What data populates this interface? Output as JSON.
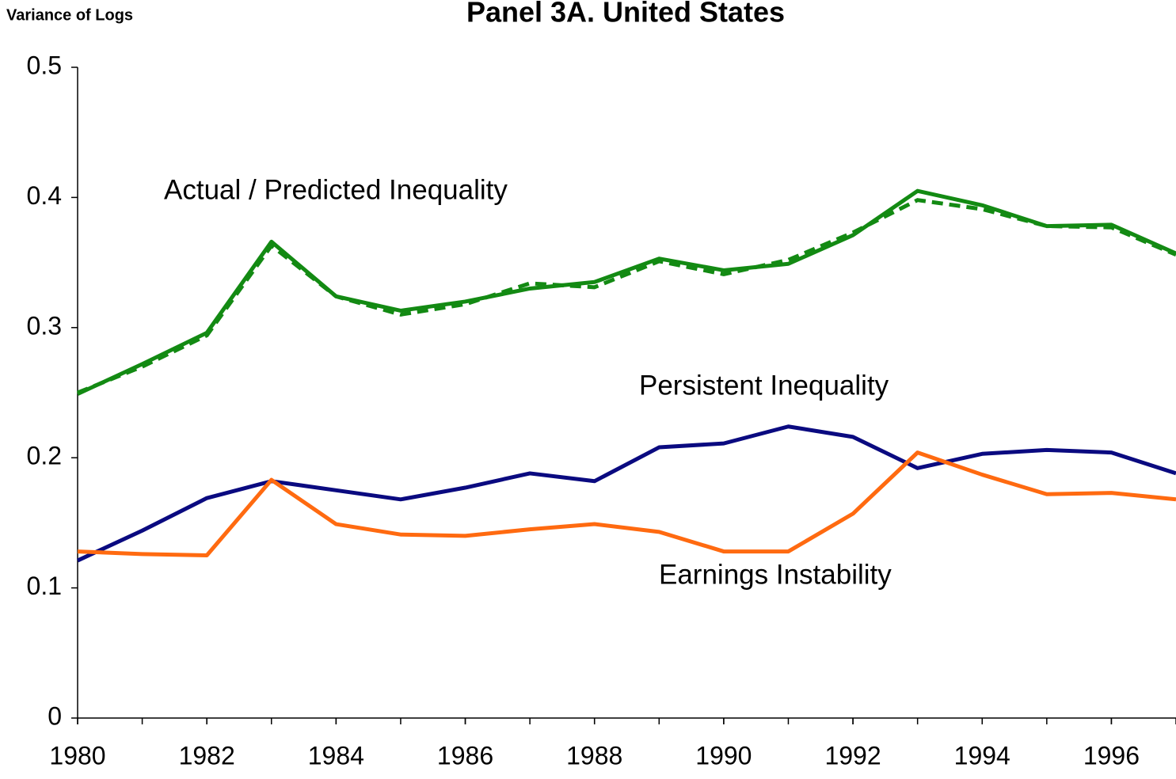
{
  "chart_data": {
    "type": "line",
    "title": "Panel 3A.  United States",
    "y_label": "Variance of Logs",
    "x": [
      1980,
      1981,
      1982,
      1983,
      1984,
      1985,
      1986,
      1987,
      1988,
      1989,
      1990,
      1991,
      1992,
      1993,
      1994,
      1995,
      1996,
      1997
    ],
    "series": [
      {
        "color": "#138a13",
        "dash": false,
        "values": [
          0.249,
          0.272,
          0.296,
          0.366,
          0.324,
          0.313,
          0.32,
          0.33,
          0.335,
          0.353,
          0.344,
          0.349,
          0.371,
          0.405,
          0.394,
          0.378,
          0.379,
          0.357
        ]
      },
      {
        "color": "#138a13",
        "dash": true,
        "values": [
          0.25,
          0.27,
          0.294,
          0.363,
          0.324,
          0.31,
          0.318,
          0.334,
          0.331,
          0.351,
          0.341,
          0.352,
          0.373,
          0.398,
          0.391,
          0.378,
          0.377,
          0.356
        ]
      },
      {
        "color": "#0a0a80",
        "dash": false,
        "values": [
          0.121,
          0.144,
          0.169,
          0.182,
          0.175,
          0.168,
          0.177,
          0.188,
          0.182,
          0.208,
          0.211,
          0.224,
          0.216,
          0.192,
          0.203,
          0.206,
          0.204,
          0.188
        ]
      },
      {
        "color": "#ff6a10",
        "dash": false,
        "values": [
          0.128,
          0.126,
          0.125,
          0.183,
          0.149,
          0.141,
          0.14,
          0.145,
          0.149,
          0.143,
          0.128,
          0.128,
          0.157,
          0.204,
          0.187,
          0.172,
          0.173,
          0.168
        ]
      }
    ],
    "annotations": [
      {
        "text": "Actual / Predicted Inequality",
        "color": "#138a13"
      },
      {
        "text": "Persistent Inequality",
        "color": "#0a0a80"
      },
      {
        "text": "Earnings Instability",
        "color": "#ff6a10"
      }
    ],
    "xlim": [
      1980,
      1997
    ],
    "xticks": [
      1980,
      1982,
      1984,
      1986,
      1988,
      1990,
      1992,
      1994,
      1996
    ],
    "ylim": [
      0,
      0.5
    ],
    "yticks": [
      0,
      0.1,
      0.2,
      0.3,
      0.4,
      0.5
    ],
    "grid": false
  }
}
